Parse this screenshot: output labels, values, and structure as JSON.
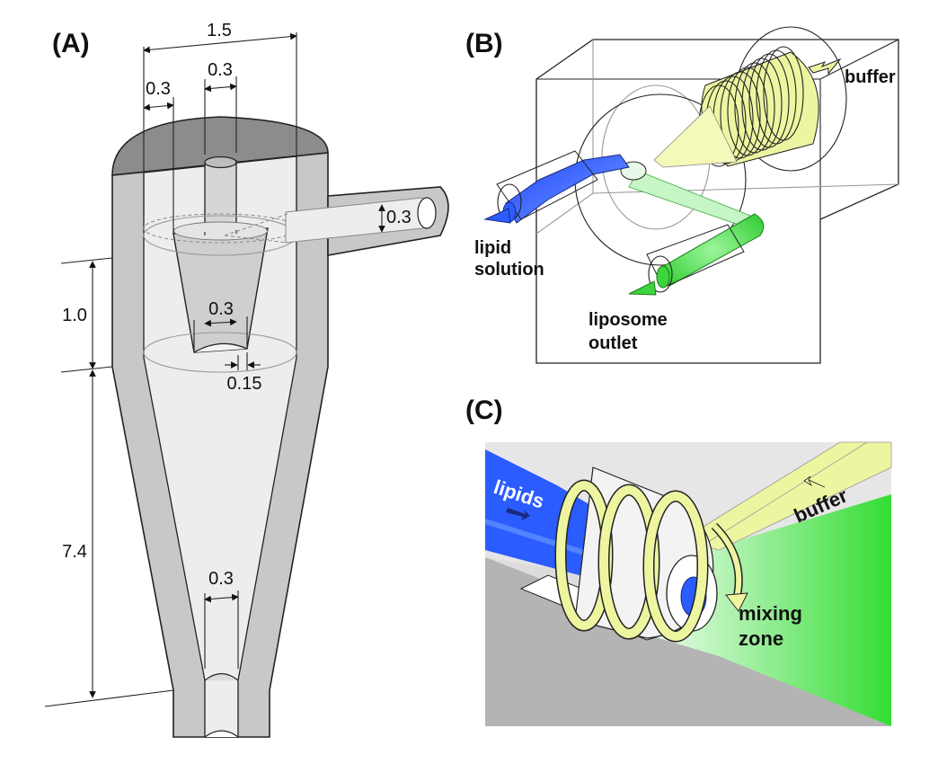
{
  "panels": {
    "a": {
      "label": "(A)",
      "dimensions": {
        "total_width": "1.5",
        "left_wall": "0.3",
        "top_tube": "0.3",
        "side_inlet": "0.3",
        "cone_outlet": "0.3",
        "cone_gap": "0.15",
        "upper_height": "1.0",
        "lower_height": "7.4",
        "bottom_tube": "0.3"
      }
    },
    "b": {
      "label": "(B)",
      "buffer": "buffer",
      "lipid_line1": "lipid",
      "lipid_line2": "solution",
      "outlet_line1": "liposome",
      "outlet_line2": "outlet"
    },
    "c": {
      "label": "(C)",
      "lipids": "lipids",
      "buffer": "buffer",
      "mixing_line1": "mixing",
      "mixing_line2": "zone"
    }
  },
  "colors": {
    "wall_gray": "#c8c8c8",
    "inner_gray": "#ededed",
    "top_face": "#8c8c8c",
    "lipid_blue": "#2a5cff",
    "buffer_yellow": "#eef5a0",
    "outlet_green": "#3dd43d"
  }
}
